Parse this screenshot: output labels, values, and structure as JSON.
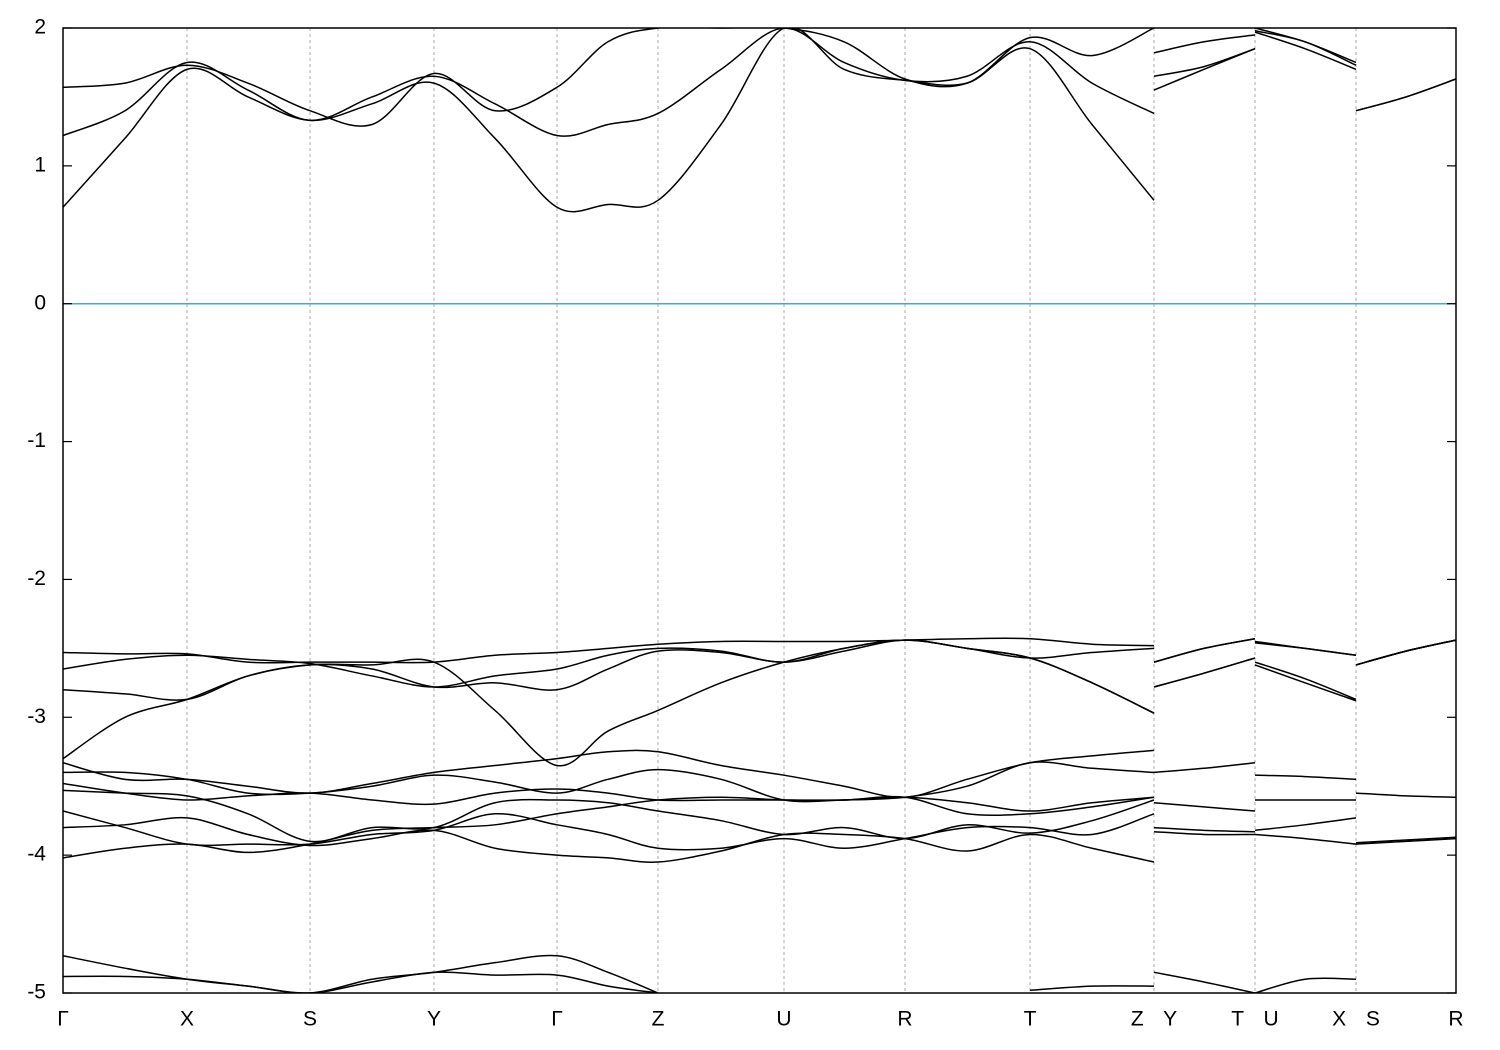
{
  "chart_data": {
    "type": "line",
    "x": [
      0,
      62,
      124,
      185,
      247,
      309,
      371,
      432,
      494,
      545,
      595,
      658,
      721,
      781,
      842,
      904,
      967,
      1029,
      1091,
      1091,
      1091,
      1141,
      1192,
      1192,
      1192,
      1242,
      1293,
      1293,
      1293,
      1343,
      1393
    ],
    "xlim": [
      0,
      1393
    ],
    "xticks": [
      {
        "value": 0,
        "label": "Γ"
      },
      {
        "value": 124,
        "label": "X"
      },
      {
        "value": 247,
        "label": "S"
      },
      {
        "value": 371,
        "label": "Y"
      },
      {
        "value": 494,
        "label": "Γ"
      },
      {
        "value": 595,
        "label": "Z"
      },
      {
        "value": 721,
        "label": "U"
      },
      {
        "value": 842,
        "label": "R"
      },
      {
        "value": 967,
        "label": "T"
      },
      {
        "value": 1091,
        "label": "Z Y"
      },
      {
        "value": 1192,
        "label": "T U"
      },
      {
        "value": 1293,
        "label": "X S"
      },
      {
        "value": 1393,
        "label": "R"
      }
    ],
    "ylim": [
      -5,
      2
    ],
    "yticks": [
      -5,
      -4,
      -3,
      -2,
      -1,
      0,
      1,
      2
    ],
    "grid": true,
    "hline": {
      "value": 0,
      "color": "#4ba7c9"
    },
    "series": [
      {
        "color": "#000000",
        "values": [
          0.7,
          1.2,
          1.7,
          1.5,
          1.33,
          1.45,
          1.6,
          1.2,
          0.7,
          0.72,
          0.75,
          1.3,
          2.0,
          1.7,
          1.62,
          1.6,
          1.85,
          1.3,
          0.75,
          null,
          1.55,
          1.7,
          1.85,
          null,
          1.97,
          1.85,
          1.7,
          null,
          1.4,
          1.5,
          1.63
        ]
      },
      {
        "color": "#000000",
        "values": [
          1.22,
          1.4,
          1.75,
          1.55,
          1.33,
          1.5,
          1.65,
          1.45,
          1.22,
          1.3,
          1.38,
          1.7,
          2.0,
          1.75,
          1.62,
          1.65,
          1.9,
          1.6,
          1.38,
          null,
          1.65,
          1.72,
          1.85,
          null,
          1.98,
          1.9,
          1.73,
          null,
          1.4,
          1.5,
          1.63
        ]
      },
      {
        "color": "#000000",
        "values": [
          1.57,
          1.6,
          1.73,
          1.6,
          1.4,
          1.3,
          1.67,
          1.4,
          1.57,
          1.9,
          2.0,
          2.0,
          2.0,
          1.9,
          1.63,
          1.6,
          1.93,
          1.8,
          2.0,
          null,
          1.82,
          1.9,
          1.95,
          null,
          2.0,
          1.9,
          1.75,
          null,
          null,
          null,
          null
        ]
      },
      {
        "color": "#000000",
        "values": [
          -2.53,
          -2.54,
          -2.54,
          -2.6,
          -2.6,
          -2.6,
          -2.6,
          -2.55,
          -2.53,
          -2.5,
          -2.47,
          -2.45,
          -2.45,
          -2.45,
          -2.44,
          -2.43,
          -2.43,
          -2.47,
          -2.48,
          null,
          -2.6,
          -2.5,
          -2.43,
          null,
          -2.45,
          -2.5,
          -2.55,
          null,
          -2.62,
          -2.52,
          -2.44
        ]
      },
      {
        "color": "#000000",
        "values": [
          -2.65,
          -2.58,
          -2.55,
          -2.58,
          -2.61,
          -2.7,
          -2.78,
          -2.7,
          -2.65,
          -2.55,
          -2.5,
          -2.52,
          -2.6,
          -2.5,
          -2.44,
          -2.5,
          -2.57,
          -2.53,
          -2.5,
          null,
          -2.6,
          -2.5,
          -2.43,
          null,
          -2.46,
          -2.5,
          -2.55,
          null,
          -2.62,
          -2.52,
          -2.44
        ]
      },
      {
        "color": "#000000",
        "values": [
          -2.8,
          -2.83,
          -2.87,
          -2.7,
          -2.62,
          -2.65,
          -2.78,
          -2.75,
          -2.8,
          -2.65,
          -2.52,
          -2.53,
          -2.6,
          -2.52,
          -2.44,
          -2.5,
          -2.57,
          -2.75,
          -2.97,
          null,
          -2.78,
          -2.68,
          -2.57,
          null,
          -2.6,
          -2.72,
          -2.87,
          null,
          -2.62,
          -2.52,
          -2.44
        ]
      },
      {
        "color": "#000000",
        "values": [
          -3.3,
          -3.0,
          -2.87,
          -2.7,
          -2.62,
          -2.62,
          -2.6,
          -2.95,
          -3.35,
          -3.1,
          -2.95,
          -2.75,
          -2.6,
          -2.5,
          -2.44,
          -2.5,
          -2.57,
          -2.75,
          -2.97,
          null,
          -2.78,
          -2.68,
          -2.57,
          null,
          -2.62,
          -2.75,
          -2.88,
          null,
          -2.62,
          -2.52,
          -2.44
        ]
      },
      {
        "color": "#000000",
        "values": [
          -3.33,
          -3.45,
          -3.45,
          -3.5,
          -3.55,
          -3.48,
          -3.4,
          -3.35,
          -3.3,
          -3.25,
          -3.25,
          -3.35,
          -3.42,
          -3.5,
          -3.58,
          -3.45,
          -3.33,
          -3.28,
          -3.24,
          null,
          -3.4,
          -3.37,
          -3.33,
          null,
          -3.42,
          -3.43,
          -3.45,
          null,
          -3.55,
          -3.57,
          -3.58
        ]
      },
      {
        "color": "#000000",
        "values": [
          -3.4,
          -3.4,
          -3.45,
          -3.55,
          -3.55,
          -3.5,
          -3.42,
          -3.47,
          -3.55,
          -3.45,
          -3.38,
          -3.45,
          -3.6,
          -3.6,
          -3.58,
          -3.5,
          -3.33,
          -3.37,
          -3.4,
          null,
          -3.62,
          -3.65,
          -3.68,
          null,
          -3.6,
          -3.6,
          -3.6,
          null,
          -3.92,
          -3.9,
          -3.88
        ]
      },
      {
        "color": "#000000",
        "values": [
          -3.48,
          -3.55,
          -3.6,
          -3.57,
          -3.55,
          -3.6,
          -3.63,
          -3.55,
          -3.52,
          -3.55,
          -3.6,
          -3.6,
          -3.6,
          -3.6,
          -3.58,
          -3.62,
          -3.68,
          -3.62,
          -3.58,
          null,
          -3.8,
          -3.82,
          -3.83,
          null,
          -3.82,
          -3.78,
          -3.73,
          null,
          -3.91,
          -3.89,
          -3.87
        ]
      },
      {
        "color": "#000000",
        "values": [
          -3.53,
          -3.55,
          -3.57,
          -3.7,
          -3.9,
          -3.8,
          -3.8,
          -3.62,
          -3.6,
          -3.62,
          -3.68,
          -3.75,
          -3.85,
          -3.8,
          -3.88,
          -3.78,
          -3.84,
          -3.75,
          -3.6,
          null,
          -3.83,
          -3.85,
          -3.85,
          null,
          -3.85,
          -3.88,
          -3.92,
          null,
          null,
          null,
          null
        ]
      },
      {
        "color": "#000000",
        "values": [
          -3.68,
          -3.8,
          -3.92,
          -3.92,
          -3.92,
          -3.85,
          -3.82,
          -3.7,
          -3.78,
          -3.85,
          -3.95,
          -3.95,
          -3.88,
          -3.95,
          -3.88,
          -3.8,
          -3.8,
          -3.85,
          -3.7,
          null,
          null,
          null,
          null,
          null,
          null,
          null,
          null,
          null,
          null,
          null,
          null
        ]
      },
      {
        "color": "#000000",
        "values": [
          -3.8,
          -3.78,
          -3.73,
          -3.85,
          -3.93,
          -3.88,
          -3.82,
          -3.95,
          -4.0,
          -4.02,
          -4.05,
          -3.97,
          -3.85,
          -3.85,
          -3.88,
          -3.97,
          -3.85,
          -3.95,
          -4.05,
          null,
          null,
          null,
          null,
          null,
          null,
          null,
          null,
          null,
          null,
          null,
          null
        ]
      },
      {
        "color": "#000000",
        "values": [
          -4.02,
          -3.95,
          -3.92,
          -3.98,
          -3.92,
          -3.82,
          -3.8,
          -3.78,
          -3.7,
          -3.65,
          -3.6,
          -3.58,
          -3.6,
          -3.6,
          -3.58,
          -3.7,
          -3.7,
          -3.65,
          -3.58,
          null,
          null,
          null,
          null,
          null,
          null,
          null,
          null,
          null,
          null,
          null,
          null
        ]
      },
      {
        "color": "#000000",
        "values": [
          -4.73,
          -4.82,
          -4.9,
          -4.95,
          -5.0,
          -4.9,
          -4.85,
          -4.78,
          -4.73,
          -4.85,
          -5.0,
          null,
          null,
          null,
          null,
          null,
          -4.98,
          -4.95,
          -4.95,
          null,
          -4.85,
          -4.92,
          -5.0,
          null,
          -5.0,
          -4.9,
          -4.9,
          null,
          null,
          null,
          null
        ]
      },
      {
        "color": "#000000",
        "values": [
          -4.88,
          -4.88,
          -4.9,
          -4.95,
          -5.0,
          -4.92,
          -4.85,
          -4.87,
          -4.87,
          -4.95,
          -5.0,
          null,
          null,
          null,
          null,
          null,
          null,
          null,
          null,
          null,
          null,
          null,
          null,
          null,
          null,
          null,
          null,
          null,
          null,
          null,
          null
        ]
      }
    ]
  }
}
